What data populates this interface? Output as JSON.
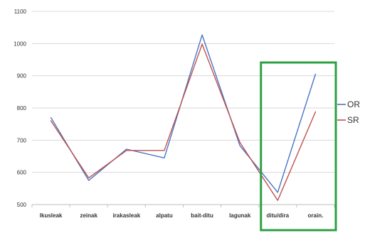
{
  "chart_data": {
    "type": "line",
    "categories": [
      "Ikusleak",
      "zeinak",
      "irakasleak",
      "alpatu",
      "bait-ditu",
      "lagunak",
      "ditu/dira",
      "orain."
    ],
    "series": [
      {
        "name": "OR",
        "color": "#4a74c4",
        "values": [
          770,
          575,
          672,
          645,
          1027,
          683,
          538,
          905
        ]
      },
      {
        "name": "SR",
        "color": "#c0504d",
        "values": [
          760,
          583,
          668,
          668,
          998,
          693,
          513,
          788
        ]
      }
    ],
    "y_ticks": [
      "500",
      "600",
      "700",
      "800",
      "900",
      "1000",
      "1100"
    ],
    "ylim": [
      500,
      1100
    ],
    "grid": true,
    "legend": "right",
    "highlight": {
      "categories": [
        "ditu/dira",
        "orain."
      ],
      "color": "#2ea043"
    }
  }
}
